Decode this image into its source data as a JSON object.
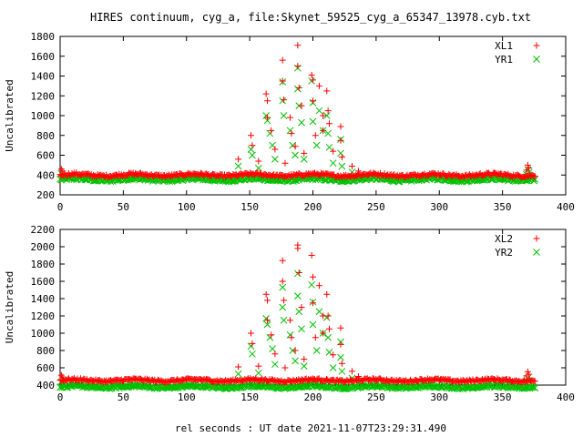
{
  "figure": {
    "title": "HIRES continuum, cyg_a, file:Skynet_59525_cyg_a_65347_13978.cyb.txt",
    "xlabel": "rel seconds : UT date 2021-11-07T23:29:31.490"
  },
  "colors": {
    "red_series": "#ff0000",
    "green_series": "#00c000",
    "axes": "#000000"
  },
  "chart_data": [
    {
      "type": "scatter",
      "ylabel": "Uncalibrated",
      "xlim": [
        0,
        400
      ],
      "ylim": [
        200,
        1800
      ],
      "xticks": [
        0,
        50,
        100,
        150,
        200,
        250,
        300,
        350,
        400
      ],
      "yticks": [
        200,
        400,
        600,
        800,
        1000,
        1200,
        1400,
        1600,
        1800
      ],
      "grid": false,
      "legend_position": "top-right",
      "data_x_range": [
        0,
        376
      ],
      "series": [
        {
          "name": "XL1",
          "marker": "plus",
          "color": "#ff0000",
          "baseline": 400,
          "peak_points": [
            [
              151,
              800
            ],
            [
              152,
              700
            ],
            [
              157,
              540
            ],
            [
              163,
              1220
            ],
            [
              164,
              1150
            ],
            [
              164,
              980
            ],
            [
              167,
              850
            ],
            [
              170,
              660
            ],
            [
              176,
              1560
            ],
            [
              176,
              1350
            ],
            [
              177,
              1160
            ],
            [
              178,
              520
            ],
            [
              182,
              980
            ],
            [
              183,
              820
            ],
            [
              186,
              690
            ],
            [
              188,
              1710
            ],
            [
              188,
              1500
            ],
            [
              189,
              1280
            ],
            [
              191,
              1100
            ],
            [
              193,
              620
            ],
            [
              199,
              1410
            ],
            [
              200,
              1360
            ],
            [
              200,
              1150
            ],
            [
              202,
              800
            ],
            [
              205,
              1300
            ],
            [
              208,
              1000
            ],
            [
              208,
              850
            ],
            [
              211,
              1250
            ],
            [
              212,
              1050
            ],
            [
              213,
              920
            ],
            [
              216,
              640
            ],
            [
              222,
              890
            ],
            [
              222,
              750
            ],
            [
              223,
              580
            ],
            [
              231,
              490
            ],
            [
              236,
              440
            ],
            [
              141,
              560
            ]
          ]
        },
        {
          "name": "YR1",
          "marker": "cross",
          "color": "#00c000",
          "baseline": 355,
          "peak_points": [
            [
              151,
              660
            ],
            [
              152,
              600
            ],
            [
              157,
              470
            ],
            [
              163,
              1000
            ],
            [
              164,
              950
            ],
            [
              166,
              820
            ],
            [
              168,
              700
            ],
            [
              170,
              560
            ],
            [
              176,
              1340
            ],
            [
              176,
              1150
            ],
            [
              177,
              1000
            ],
            [
              182,
              850
            ],
            [
              184,
              700
            ],
            [
              186,
              600
            ],
            [
              188,
              1480
            ],
            [
              188,
              1270
            ],
            [
              189,
              1100
            ],
            [
              191,
              930
            ],
            [
              193,
              560
            ],
            [
              199,
              1350
            ],
            [
              200,
              1130
            ],
            [
              200,
              940
            ],
            [
              203,
              700
            ],
            [
              205,
              1050
            ],
            [
              208,
              850
            ],
            [
              211,
              1000
            ],
            [
              212,
              820
            ],
            [
              213,
              680
            ],
            [
              216,
              520
            ],
            [
              222,
              760
            ],
            [
              222,
              620
            ],
            [
              223,
              490
            ],
            [
              231,
              430
            ],
            [
              141,
              490
            ]
          ]
        }
      ]
    },
    {
      "type": "scatter",
      "ylabel": "Uncalibrated",
      "xlim": [
        0,
        400
      ],
      "ylim": [
        400,
        2200
      ],
      "xticks": [
        0,
        50,
        100,
        150,
        200,
        250,
        300,
        350,
        400
      ],
      "yticks": [
        400,
        600,
        800,
        1000,
        1200,
        1400,
        1600,
        1800,
        2000,
        2200
      ],
      "grid": false,
      "legend_position": "top-right",
      "data_x_range": [
        0,
        376
      ],
      "series": [
        {
          "name": "XL2",
          "marker": "plus",
          "color": "#ff0000",
          "baseline": 455,
          "peak_points": [
            [
              151,
              1000
            ],
            [
              152,
              880
            ],
            [
              157,
              620
            ],
            [
              163,
              1450
            ],
            [
              164,
              1380
            ],
            [
              164,
              1150
            ],
            [
              167,
              980
            ],
            [
              170,
              760
            ],
            [
              176,
              1840
            ],
            [
              176,
              1600
            ],
            [
              177,
              1380
            ],
            [
              178,
              600
            ],
            [
              182,
              1150
            ],
            [
              183,
              950
            ],
            [
              186,
              800
            ],
            [
              188,
              2020
            ],
            [
              188,
              1980
            ],
            [
              189,
              1700
            ],
            [
              191,
              1300
            ],
            [
              193,
              700
            ],
            [
              199,
              1900
            ],
            [
              200,
              1650
            ],
            [
              200,
              1350
            ],
            [
              202,
              950
            ],
            [
              205,
              1550
            ],
            [
              208,
              1200
            ],
            [
              208,
              1000
            ],
            [
              211,
              1450
            ],
            [
              212,
              1200
            ],
            [
              213,
              1050
            ],
            [
              216,
              750
            ],
            [
              222,
              1060
            ],
            [
              222,
              870
            ],
            [
              223,
              650
            ],
            [
              231,
              560
            ],
            [
              236,
              500
            ],
            [
              141,
              610
            ]
          ]
        },
        {
          "name": "YR2",
          "marker": "cross",
          "color": "#00c000",
          "baseline": 380,
          "peak_points": [
            [
              151,
              850
            ],
            [
              152,
              760
            ],
            [
              157,
              540
            ],
            [
              163,
              1170
            ],
            [
              164,
              1100
            ],
            [
              166,
              950
            ],
            [
              168,
              820
            ],
            [
              170,
              640
            ],
            [
              176,
              1530
            ],
            [
              176,
              1300
            ],
            [
              177,
              1150
            ],
            [
              182,
              980
            ],
            [
              184,
              800
            ],
            [
              186,
              680
            ],
            [
              188,
              1690
            ],
            [
              188,
              1430
            ],
            [
              189,
              1250
            ],
            [
              191,
              1050
            ],
            [
              193,
              620
            ],
            [
              199,
              1560
            ],
            [
              200,
              1360
            ],
            [
              200,
              1100
            ],
            [
              203,
              800
            ],
            [
              205,
              1250
            ],
            [
              208,
              1000
            ],
            [
              211,
              1180
            ],
            [
              212,
              950
            ],
            [
              213,
              780
            ],
            [
              216,
              600
            ],
            [
              222,
              900
            ],
            [
              222,
              720
            ],
            [
              223,
              560
            ],
            [
              231,
              480
            ],
            [
              141,
              530
            ]
          ]
        }
      ]
    }
  ]
}
